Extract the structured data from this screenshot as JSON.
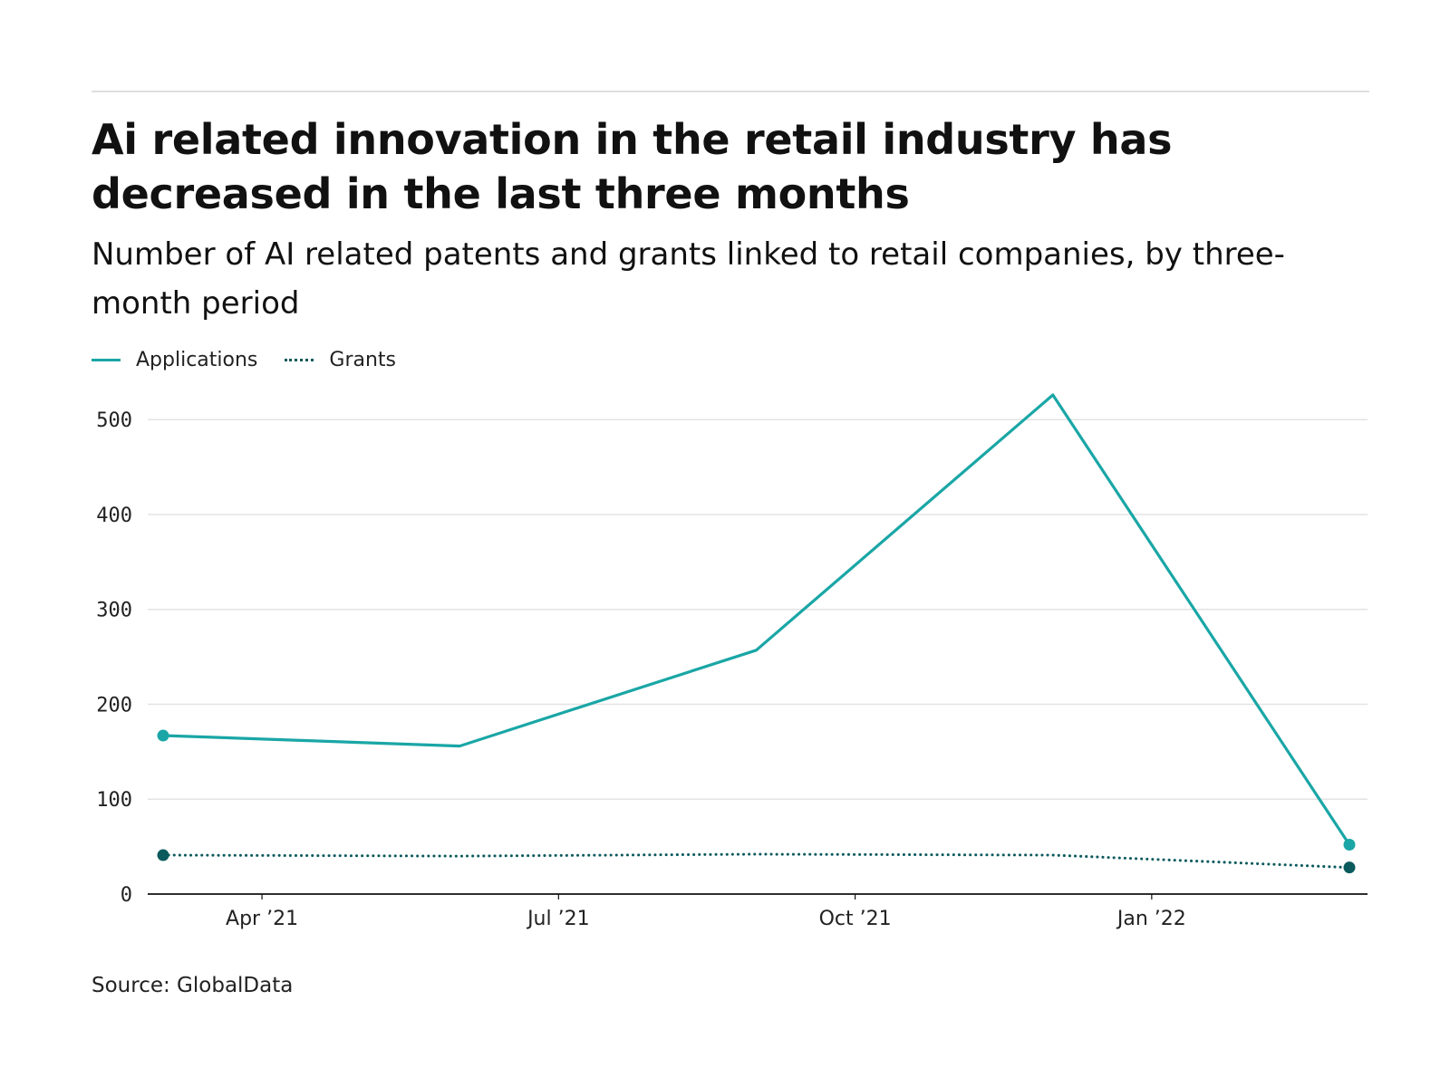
{
  "header": {
    "title": "Ai related innovation in the retail industry has decreased in the last three months",
    "subtitle": "Number of AI related patents and grants linked to retail companies, by three-month period"
  },
  "footer": {
    "source": "Source: GlobalData"
  },
  "colors": {
    "applications": "#1aa6a6",
    "grants": "#0b5a5d",
    "grid": "#e3e3e3",
    "axis": "#111111"
  },
  "chart_data": {
    "type": "line",
    "title": "Ai related innovation in the retail industry has decreased in the last three months",
    "subtitle": "Number of AI related patents and grants linked to retail companies, by three-month period",
    "xlabel": "",
    "ylabel": "",
    "ylim": [
      0,
      525
    ],
    "yticks": [
      0,
      100,
      200,
      300,
      400,
      500
    ],
    "x": [
      "2021-03",
      "2021-06",
      "2021-09",
      "2021-12",
      "2022-03"
    ],
    "xticks": [
      {
        "label": "Apr ’21",
        "date": "2021-04"
      },
      {
        "label": "Jul ’21",
        "date": "2021-07"
      },
      {
        "label": "Oct ’21",
        "date": "2021-10"
      },
      {
        "label": "Jan ’22",
        "date": "2022-01"
      }
    ],
    "grid": "horizontal",
    "legend_position": "top-left",
    "series": [
      {
        "name": "Applications",
        "style": "solid",
        "color": "#1aa6a6",
        "values": [
          167,
          156,
          257,
          526,
          52
        ]
      },
      {
        "name": "Grants",
        "style": "dotted",
        "color": "#0b5a5d",
        "values": [
          41,
          40,
          42,
          41,
          28
        ]
      }
    ]
  }
}
